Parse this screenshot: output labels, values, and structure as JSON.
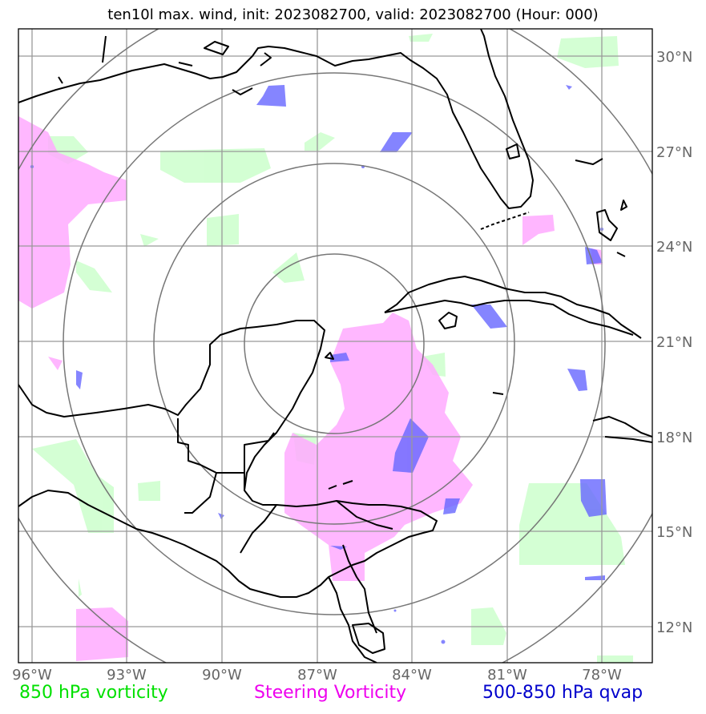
{
  "title": "ten10l max. wind, init: 2023082700, valid: 2023082700 (Hour: 000)",
  "lon_ticks": [
    "96°W",
    "93°W",
    "90°W",
    "87°W",
    "84°W",
    "81°W",
    "78°W"
  ],
  "lat_ticks": [
    "30°N",
    "27°N",
    "24°N",
    "21°N",
    "18°N",
    "15°N",
    "12°N"
  ],
  "legend": {
    "vort850": "850 hPa vorticity",
    "steering": "Steering Vorticity",
    "qvap": "500-850 hPa qvap"
  },
  "colors": {
    "vort850": "#ccffcc",
    "steering": "#ffaaff",
    "qvap": "#6666ff",
    "grid": "#999999",
    "range_rings": "#777777",
    "coast": "#000000"
  },
  "map_extent": {
    "lon": [
      -96.3,
      -76.5
    ],
    "lat": [
      10.9,
      31.0
    ]
  },
  "range_rings_center": {
    "lon": -86.5,
    "lat": 21.0
  }
}
